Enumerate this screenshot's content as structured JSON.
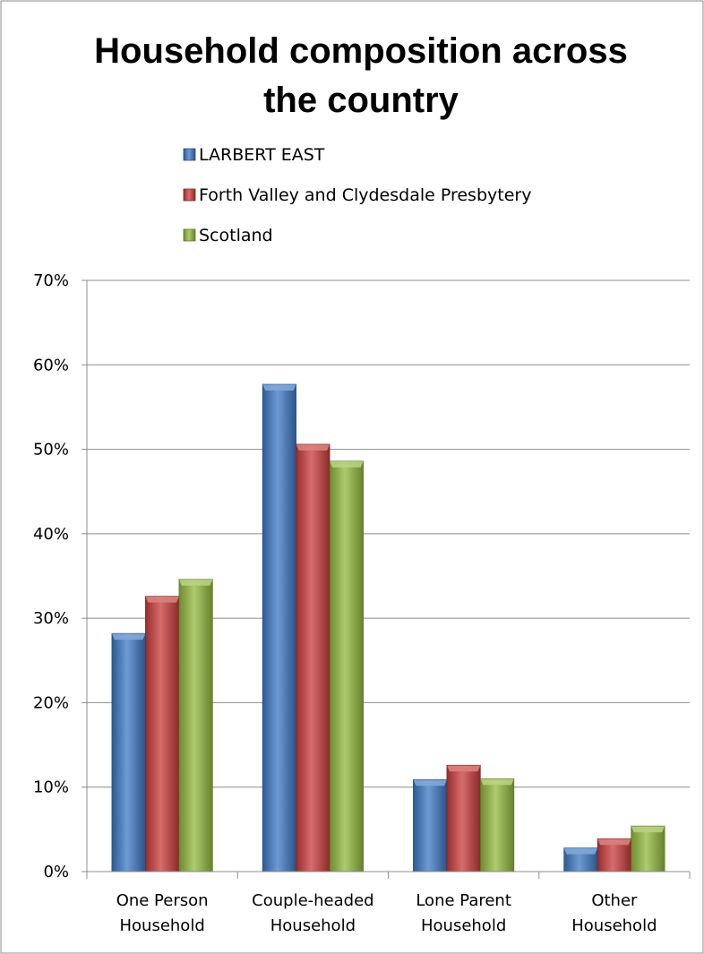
{
  "chart_data": {
    "type": "bar",
    "title_lines": [
      "Household composition across",
      "the country"
    ],
    "categories": [
      [
        "One Person",
        "Household"
      ],
      [
        "Couple-headed",
        "Household"
      ],
      [
        "Lone Parent",
        "Household"
      ],
      [
        "Other",
        "Household"
      ]
    ],
    "series": [
      {
        "name": "LARBERT EAST",
        "color": "#3d78c4",
        "values": [
          28.2,
          57.7,
          10.9,
          2.8
        ]
      },
      {
        "name": "Forth Valley and Clydesdale Presbytery",
        "color": "#c83c3a",
        "values": [
          32.6,
          50.6,
          12.6,
          3.9
        ]
      },
      {
        "name": "Scotland",
        "color": "#92ba3e",
        "values": [
          34.6,
          48.6,
          11.0,
          5.4
        ]
      }
    ],
    "ylim": [
      0,
      70
    ],
    "yticks": [
      "0%",
      "10%",
      "20%",
      "30%",
      "40%",
      "50%",
      "60%",
      "70%"
    ],
    "grid": true,
    "legend_position": "top"
  }
}
